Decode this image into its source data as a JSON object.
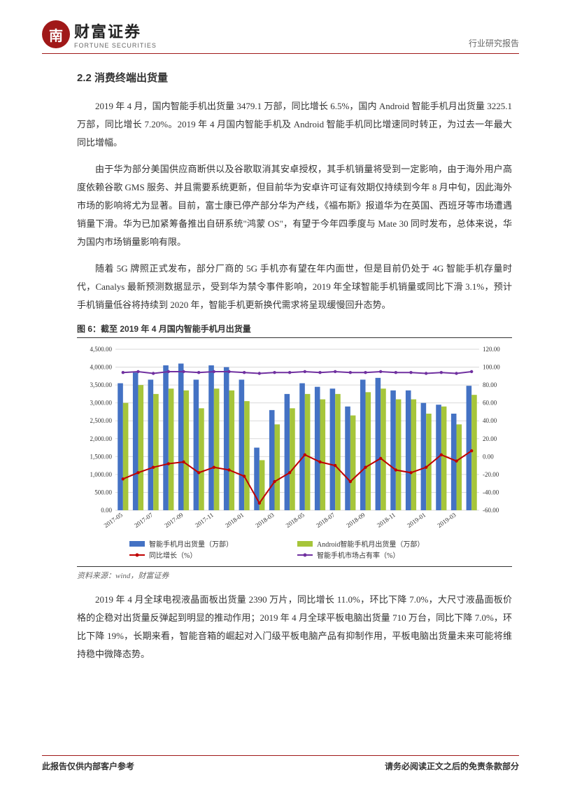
{
  "header": {
    "logo_char": "南",
    "logo_cn": "财富证券",
    "logo_en": "FORTUNE SECURITIES",
    "doc_type": "行业研究报告"
  },
  "section": {
    "number_title": "2.2 消费终端出货量"
  },
  "paragraphs": {
    "p1": "2019 年 4 月，国内智能手机出货量 3479.1 万部，同比增长 6.5%，国内 Android 智能手机月出货量 3225.1 万部，同比增长 7.20%。2019 年 4 月国内智能手机及 Android 智能手机同比增速同时转正，为过去一年最大同比增幅。",
    "p2": "由于华为部分美国供应商断供以及谷歌取消其安卓授权，其手机销量将受到一定影响，由于海外用户高度依赖谷歌 GMS 服务、并且需要系统更新，但目前华为安卓许可证有效期仅持续到今年 8 月中旬，因此海外市场的影响将尤为显著。目前，富士康已停产部分华为产线，《福布斯》报道华为在英国、西班牙等市场遭遇销量下滑。华为已加紧筹备推出自研系统\"鸿蒙 OS\"，有望于今年四季度与 Mate 30 同时发布，总体来说，华为国内市场销量影响有限。",
    "p3": "随着 5G 牌照正式发布，部分厂商的 5G 手机亦有望在年内面世，但是目前仍处于 4G 智能手机存量时代，Canalys 最新预测数据显示，受到华为禁令事件影响，2019 年全球智能手机销量或同比下滑 3.1%，预计手机销量低谷将持续到 2020 年，智能手机更新换代需求将呈现缓慢回升态势。",
    "p4": "2019 年 4 月全球电视液晶面板出货量 2390 万片，同比增长 11.0%，环比下降 7.0%，大尺寸液晶面板价格的企稳对出货量反弹起到明显的推动作用；2019 年 4 月全球平板电脑出货量 710 万台，同比下降 7.0%，环比下降 19%，长期来看，智能音箱的崛起对入门级平板电脑产品有抑制作用，平板电脑出货量未来可能将维持稳中微降态势。"
  },
  "figure": {
    "title": "图 6：截至 2019 年 4 月国内智能手机月出货量",
    "source": "资料来源：wind，财富证券"
  },
  "chart": {
    "type": "bar+line-dual-axis",
    "background_color": "#ffffff",
    "grid_color": "#d9d9d9",
    "axis_label_fontsize": 9,
    "categories": [
      "2017-05",
      "2017-06",
      "2017-07",
      "2017-08",
      "2017-09",
      "2017-10",
      "2017-11",
      "2017-12",
      "2018-01",
      "2018-02",
      "2018-03",
      "2018-04",
      "2018-05",
      "2018-06",
      "2018-07",
      "2018-08",
      "2018-09",
      "2018-10",
      "2018-11",
      "2018-12",
      "2019-01",
      "2019-02",
      "2019-03",
      "2019-04"
    ],
    "x_tick_labels_visible": [
      "2017-05",
      "2017-07",
      "2017-09",
      "2017-11",
      "2018-01",
      "2018-03",
      "2018-05",
      "2018-07",
      "2018-09",
      "2018-11",
      "2019-01",
      "2019-03"
    ],
    "left_axis": {
      "min": 0,
      "max": 4500,
      "step": 500,
      "tick_labels": [
        "0.00",
        "500.00",
        "1,000.00",
        "1,500.00",
        "2,000.00",
        "2,500.00",
        "3,000.00",
        "3,500.00",
        "4,000.00",
        "4,500.00"
      ]
    },
    "right_axis": {
      "min": -60,
      "max": 120,
      "step": 20,
      "tick_labels": [
        "-60.00",
        "-40.00",
        "-20.00",
        "0.00",
        "20.00",
        "40.00",
        "60.00",
        "80.00",
        "100.00",
        "120.00"
      ]
    },
    "series": {
      "smartphone_shipment": {
        "label": "智能手机月出货量（万部）",
        "type": "bar",
        "color": "#4472c4",
        "axis": "left",
        "values": [
          3550,
          3850,
          3650,
          4050,
          4100,
          3650,
          4050,
          4000,
          3650,
          1750,
          2800,
          3250,
          3550,
          3450,
          3400,
          2900,
          3650,
          3700,
          3350,
          3350,
          3000,
          2950,
          2700,
          3479
        ]
      },
      "android_shipment": {
        "label": "Android智能手机月出货量（万部）",
        "type": "bar",
        "color": "#a6c53a",
        "axis": "left",
        "values": [
          3000,
          3500,
          3250,
          3400,
          3350,
          2850,
          3400,
          3350,
          3050,
          1400,
          2400,
          2850,
          3250,
          3100,
          3250,
          2650,
          3300,
          3400,
          3100,
          3100,
          2700,
          2900,
          2400,
          3225
        ]
      },
      "yoy_growth": {
        "label": "同比增长（%）",
        "type": "line",
        "color": "#c00000",
        "axis": "right",
        "marker": "circle",
        "line_width": 2,
        "values": [
          -25,
          -18,
          -12,
          -8,
          -6,
          -18,
          -12,
          -15,
          -22,
          -52,
          -28,
          -18,
          2,
          -6,
          -10,
          -28,
          -12,
          -2,
          -15,
          -18,
          -12,
          2,
          -5,
          6.5
        ]
      },
      "market_share": {
        "label": "智能手机市场占有率（%）",
        "type": "line",
        "color": "#7030a0",
        "axis": "right",
        "marker": "circle",
        "line_width": 2,
        "values": [
          94,
          95,
          93,
          95,
          95,
          94,
          95,
          95,
          94,
          93,
          94,
          94,
          95,
          94,
          95,
          94,
          94,
          95,
          94,
          94,
          93,
          94,
          93,
          95
        ]
      }
    },
    "legend": {
      "position": "bottom",
      "fontsize": 10
    }
  },
  "footer": {
    "left": "此报告仅供内部客户参考",
    "right": "请务必阅读正文之后的免责条款部分"
  }
}
